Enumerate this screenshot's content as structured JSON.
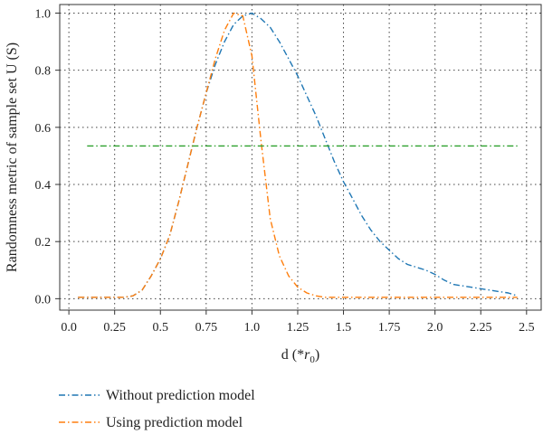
{
  "chart_data": {
    "type": "line",
    "title": "",
    "xlabel_main": "d (*",
    "xlabel_sym": "r",
    "xlabel_sub": "0",
    "xlabel_end": ")",
    "ylabel": "Randomness metric of sample set U (S)",
    "xlim": [
      -0.05,
      2.58
    ],
    "ylim": [
      -0.04,
      1.03
    ],
    "xticks": [
      "0.0",
      "0.25",
      "0.5",
      "0.75",
      "1.0",
      "1.25",
      "1.5",
      "1.75",
      "2.0",
      "2.25",
      "2.5"
    ],
    "yticks": [
      "0.0",
      "0.2",
      "0.4",
      "0.6",
      "0.8",
      "1.0"
    ],
    "grid": true,
    "legend_position": "below",
    "series": [
      {
        "name": "Without prediction model",
        "color": "#1f77b4",
        "style": "dashdot",
        "x": [
          0.05,
          0.15,
          0.25,
          0.3,
          0.35,
          0.4,
          0.45,
          0.5,
          0.55,
          0.6,
          0.65,
          0.7,
          0.75,
          0.8,
          0.85,
          0.9,
          0.95,
          1.0,
          1.05,
          1.1,
          1.15,
          1.2,
          1.25,
          1.3,
          1.35,
          1.4,
          1.45,
          1.5,
          1.55,
          1.6,
          1.65,
          1.7,
          1.75,
          1.8,
          1.85,
          1.9,
          1.95,
          2.0,
          2.05,
          2.1,
          2.15,
          2.2,
          2.25,
          2.3,
          2.35,
          2.4,
          2.45
        ],
        "y": [
          0.005,
          0.005,
          0.005,
          0.005,
          0.01,
          0.03,
          0.08,
          0.14,
          0.22,
          0.34,
          0.47,
          0.6,
          0.72,
          0.82,
          0.9,
          0.96,
          0.99,
          1.0,
          0.98,
          0.95,
          0.9,
          0.84,
          0.78,
          0.71,
          0.64,
          0.56,
          0.48,
          0.41,
          0.35,
          0.29,
          0.24,
          0.2,
          0.17,
          0.14,
          0.12,
          0.11,
          0.1,
          0.085,
          0.065,
          0.05,
          0.045,
          0.04,
          0.035,
          0.03,
          0.025,
          0.02,
          0.01
        ]
      },
      {
        "name": "Using prediction model",
        "color": "#ff7f0e",
        "style": "dashdot",
        "x": [
          0.05,
          0.15,
          0.25,
          0.3,
          0.35,
          0.4,
          0.45,
          0.5,
          0.55,
          0.6,
          0.65,
          0.7,
          0.75,
          0.8,
          0.85,
          0.9,
          0.95,
          1.0,
          1.05,
          1.1,
          1.15,
          1.2,
          1.25,
          1.3,
          1.35,
          1.4,
          1.5,
          1.75,
          2.0,
          2.25,
          2.45
        ],
        "y": [
          0.005,
          0.005,
          0.005,
          0.005,
          0.01,
          0.03,
          0.08,
          0.14,
          0.22,
          0.34,
          0.47,
          0.6,
          0.72,
          0.84,
          0.94,
          1.0,
          0.99,
          0.85,
          0.55,
          0.28,
          0.15,
          0.08,
          0.04,
          0.02,
          0.01,
          0.005,
          0.005,
          0.005,
          0.005,
          0.005,
          0.005
        ]
      },
      {
        "color": "#2ca02c",
        "style": "dashdot",
        "x": [
          0.1,
          2.45
        ],
        "y": [
          0.535,
          0.535
        ]
      }
    ]
  }
}
